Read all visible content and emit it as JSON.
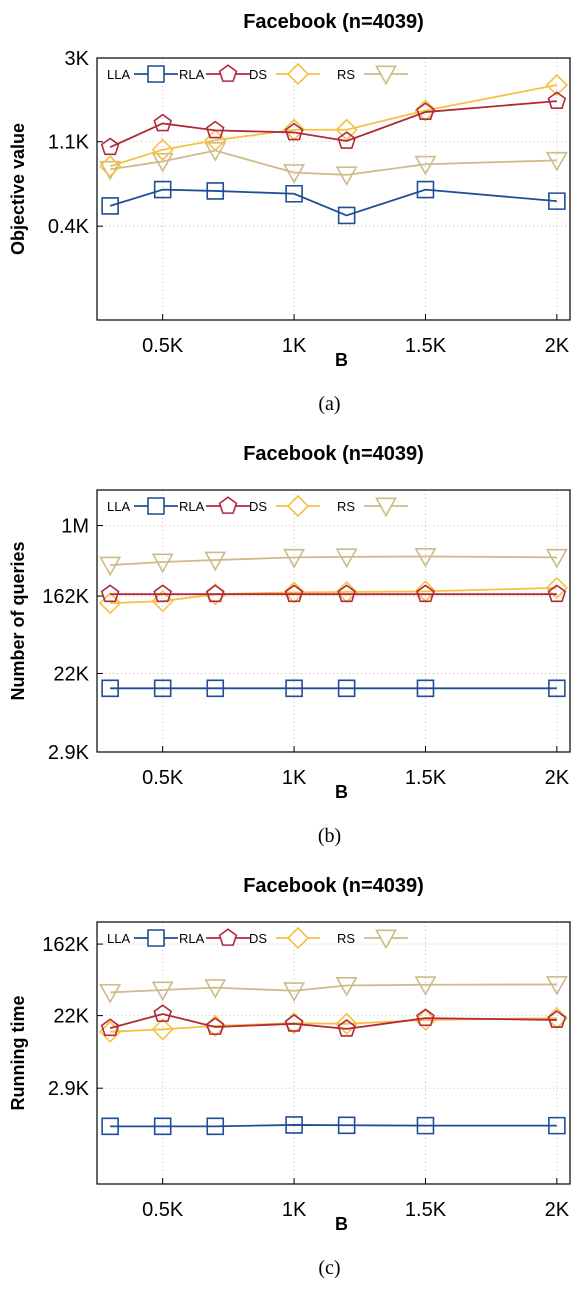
{
  "colors": {
    "LLA": "#1f4e96",
    "RLA": "#b22a3a",
    "DS": "#f6c142",
    "RS": "#cdbb8a"
  },
  "legend_markers": {
    "LLA": "square",
    "RLA": "pentagon",
    "DS": "diamond",
    "RS": "triangle-down"
  },
  "chart_data": [
    {
      "type": "line",
      "title": "Facebook (n=4039)",
      "xlabel": "B",
      "ylabel": "Objective value",
      "caption": "(a)",
      "yscale": "log",
      "ylim": [
        130,
        3000
      ],
      "xlim": [
        250,
        2050
      ],
      "grid": true,
      "legend_position": "top-left",
      "xticks": [
        {
          "v": 500,
          "label": "0.5K"
        },
        {
          "v": 1000,
          "label": "1K"
        },
        {
          "v": 1500,
          "label": "1.5K"
        },
        {
          "v": 2000,
          "label": "2K"
        }
      ],
      "yticks": [
        {
          "v": 3000,
          "label": "3K"
        },
        {
          "v": 1100,
          "label": "1.1K"
        },
        {
          "v": 400,
          "label": "0.4K"
        }
      ],
      "x": [
        300,
        500,
        700,
        1000,
        1200,
        1500,
        2000
      ],
      "series": [
        {
          "name": "LLA",
          "values": [
            510,
            620,
            610,
            590,
            455,
            620,
            540
          ]
        },
        {
          "name": "RLA",
          "values": [
            1030,
            1370,
            1260,
            1230,
            1110,
            1570,
            1790
          ]
        },
        {
          "name": "DS",
          "values": [
            820,
            1000,
            1120,
            1270,
            1270,
            1600,
            2170
          ]
        },
        {
          "name": "RS",
          "values": [
            790,
            870,
            990,
            760,
            740,
            840,
            880
          ]
        }
      ]
    },
    {
      "type": "line",
      "title": "Facebook (n=4039)",
      "xlabel": "B",
      "ylabel": "Number of queries",
      "caption": "(b)",
      "yscale": "log",
      "ylim": [
        2900,
        2500000
      ],
      "xlim": [
        250,
        2050
      ],
      "grid": true,
      "legend_position": "top-left",
      "xticks": [
        {
          "v": 500,
          "label": "0.5K"
        },
        {
          "v": 1000,
          "label": "1K"
        },
        {
          "v": 1500,
          "label": "1.5K"
        },
        {
          "v": 2000,
          "label": "2K"
        }
      ],
      "yticks": [
        {
          "v": 1000000,
          "label": "1M"
        },
        {
          "v": 162000,
          "label": "162K"
        },
        {
          "v": 22000,
          "label": "22K"
        },
        {
          "v": 2900,
          "label": "2.9K"
        }
      ],
      "x": [
        300,
        500,
        700,
        1000,
        1200,
        1500,
        2000
      ],
      "series": [
        {
          "name": "LLA",
          "values": [
            15000,
            15000,
            15000,
            15000,
            15000,
            15000,
            15000
          ]
        },
        {
          "name": "RLA",
          "values": [
            170000,
            170000,
            170000,
            170000,
            170000,
            170000,
            170000
          ]
        },
        {
          "name": "DS",
          "values": [
            135000,
            142000,
            170000,
            178000,
            180000,
            183000,
            200000
          ]
        },
        {
          "name": "RS",
          "values": [
            360000,
            390000,
            410000,
            440000,
            445000,
            450000,
            440000
          ]
        }
      ]
    },
    {
      "type": "line",
      "title": "Facebook (n=4039)",
      "xlabel": "B",
      "ylabel": "Running time",
      "caption": "(c)",
      "yscale": "log",
      "ylim": [
        200,
        300000
      ],
      "xlim": [
        250,
        2050
      ],
      "grid": true,
      "legend_position": "top-left",
      "xticks": [
        {
          "v": 500,
          "label": "0.5K"
        },
        {
          "v": 1000,
          "label": "1K"
        },
        {
          "v": 1500,
          "label": "1.5K"
        },
        {
          "v": 2000,
          "label": "2K"
        }
      ],
      "yticks": [
        {
          "v": 162000,
          "label": "162K"
        },
        {
          "v": 22000,
          "label": "22K"
        },
        {
          "v": 2900,
          "label": "2.9K"
        }
      ],
      "x": [
        300,
        500,
        700,
        1000,
        1200,
        1500,
        2000
      ],
      "series": [
        {
          "name": "LLA",
          "values": [
            1000,
            1000,
            1000,
            1040,
            1030,
            1020,
            1020
          ]
        },
        {
          "name": "RLA",
          "values": [
            15500,
            23000,
            16000,
            17500,
            15200,
            20500,
            19500
          ]
        },
        {
          "name": "DS",
          "values": [
            14000,
            15000,
            16500,
            17800,
            17500,
            19500,
            20500
          ]
        },
        {
          "name": "RS",
          "values": [
            42000,
            45000,
            48000,
            44000,
            51000,
            52000,
            52500
          ]
        }
      ]
    }
  ]
}
